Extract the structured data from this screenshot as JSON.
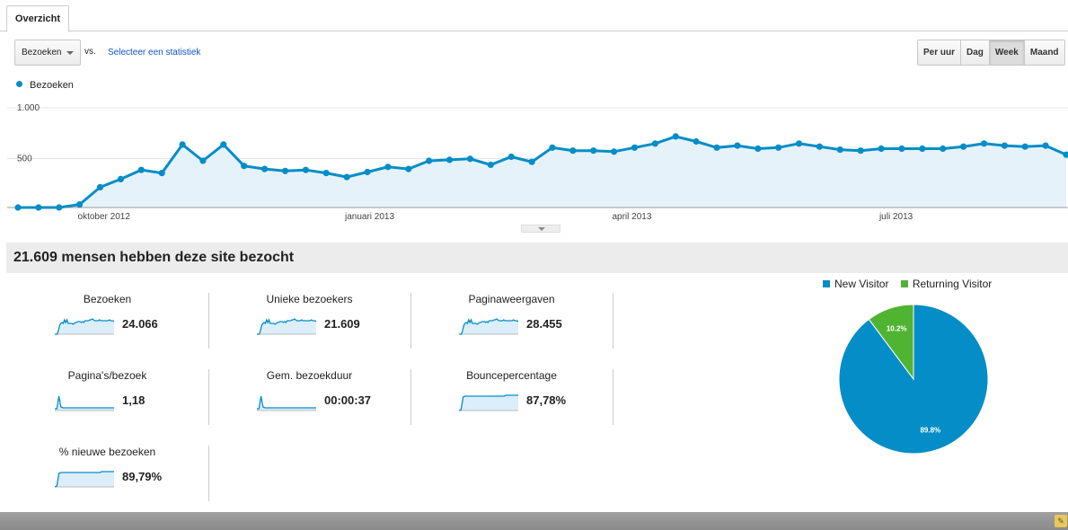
{
  "tab": {
    "label": "Overzicht"
  },
  "controls": {
    "metric_select": "Bezoeken",
    "vs_label": "vs.",
    "select_stat_link": "Selecteer een statistiek",
    "granularity": [
      "Per uur",
      "Dag",
      "Week",
      "Maand"
    ],
    "granularity_active": "Week"
  },
  "chart_data": {
    "type": "area",
    "series": [
      {
        "name": "Bezoeken",
        "values": [
          0,
          0,
          0,
          30,
          200,
          280,
          370,
          340,
          620,
          460,
          620,
          410,
          380,
          360,
          370,
          340,
          300,
          350,
          400,
          380,
          460,
          470,
          480,
          420,
          500,
          450,
          590,
          560,
          560,
          550,
          590,
          630,
          700,
          650,
          590,
          610,
          580,
          590,
          630,
          600,
          570,
          560,
          580,
          580,
          580,
          580,
          600,
          630,
          610,
          600,
          610,
          520
        ]
      }
    ],
    "ylim": [
      0,
      1000
    ],
    "y_ticks": [
      "1.000",
      "500"
    ],
    "x_ticks": [
      "oktober 2012",
      "januari 2013",
      "april 2013",
      "juli 2013"
    ],
    "color": "#058dc7",
    "grid": true
  },
  "summary": {
    "title": "21.609 mensen hebben deze site bezocht"
  },
  "metrics": [
    {
      "name": "Bezoeken",
      "value": "24.066",
      "spark": "visits"
    },
    {
      "name": "Unieke bezoekers",
      "value": "21.609",
      "spark": "visits"
    },
    {
      "name": "Paginaweergaven",
      "value": "28.455",
      "spark": "visits"
    },
    {
      "name": "Pagina's/bezoek",
      "value": "1,18",
      "spark": "spike"
    },
    {
      "name": "Gem. bezoekduur",
      "value": "00:00:37",
      "spark": "spike"
    },
    {
      "name": "Bouncepercentage",
      "value": "87,78%",
      "spark": "plateau"
    },
    {
      "name": "% nieuwe bezoeken",
      "value": "89,79%",
      "spark": "plateau"
    }
  ],
  "pie": {
    "type": "pie",
    "legend": [
      {
        "label": "New Visitor",
        "color": "#058dc7"
      },
      {
        "label": "Returning Visitor",
        "color": "#50b432"
      }
    ],
    "slices": [
      {
        "label": "New Visitor",
        "value": 89.8,
        "text": "89.8%",
        "color": "#058dc7"
      },
      {
        "label": "Returning Visitor",
        "value": 10.2,
        "text": "10.2%",
        "color": "#50b432"
      }
    ]
  }
}
